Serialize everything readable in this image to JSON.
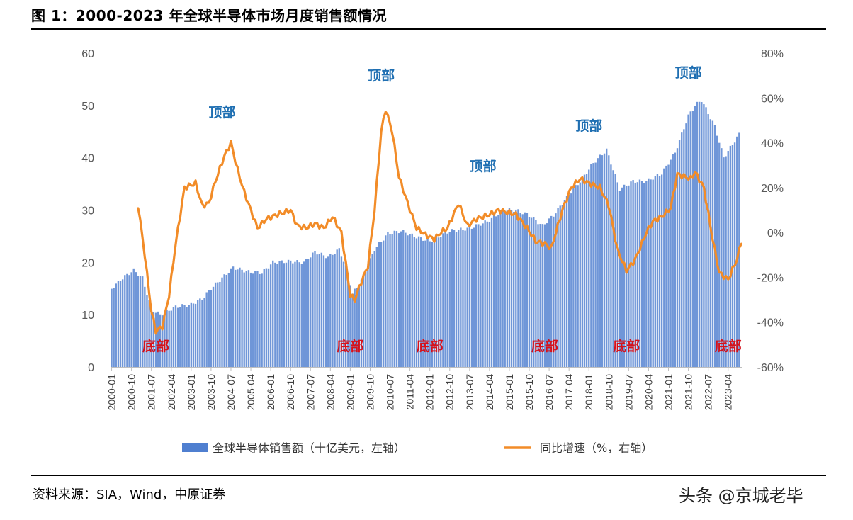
{
  "title": "图 1：2000-2023 年全球半导体市场月度销售额情况",
  "source": "资料来源：SIA，Wind，中原证券",
  "watermark": "头条 @京城老毕",
  "chart_data": {
    "type": "bar+line",
    "left_axis": {
      "min": 0,
      "max": 60,
      "ticks": [
        "0",
        "10",
        "20",
        "30",
        "40",
        "50",
        "60"
      ]
    },
    "right_axis": {
      "min": -60,
      "max": 80,
      "unit": "%",
      "ticks": [
        "-60%",
        "-40%",
        "-20%",
        "0%",
        "20%",
        "40%",
        "60%",
        "80%"
      ]
    },
    "x_tick_labels": [
      "2000-01",
      "2000-10",
      "2001-07",
      "2002-04",
      "2003-01",
      "2003-10",
      "2004-07",
      "2005-04",
      "2006-01",
      "2006-10",
      "2007-07",
      "2008-04",
      "2009-01",
      "2009-10",
      "2010-07",
      "2011-04",
      "2012-01",
      "2012-10",
      "2013-07",
      "2014-04",
      "2015-01",
      "2015-10",
      "2016-07",
      "2017-04",
      "2018-01",
      "2018-10",
      "2019-07",
      "2020-04",
      "2021-01",
      "2021-10",
      "2022-07",
      "2023-04"
    ],
    "series": [
      {
        "name": "全球半导体销售额（十亿美元，左轴）",
        "type": "bar",
        "axis": "left",
        "color": "#4f7fd0",
        "anchors": [
          [
            "2000-01",
            15
          ],
          [
            "2000-06",
            17
          ],
          [
            "2000-11",
            18.5
          ],
          [
            "2001-03",
            17
          ],
          [
            "2001-07",
            11
          ],
          [
            "2001-11",
            10
          ],
          [
            "2002-06",
            11.5
          ],
          [
            "2003-01",
            12
          ],
          [
            "2003-06",
            13
          ],
          [
            "2003-10",
            15
          ],
          [
            "2004-03",
            17
          ],
          [
            "2004-08",
            19
          ],
          [
            "2005-03",
            18.2
          ],
          [
            "2005-09",
            18
          ],
          [
            "2006-02",
            20
          ],
          [
            "2006-10",
            20.2
          ],
          [
            "2007-04",
            20
          ],
          [
            "2007-09",
            22
          ],
          [
            "2008-03",
            21
          ],
          [
            "2008-08",
            22.5
          ],
          [
            "2008-12",
            18
          ],
          [
            "2009-02",
            14
          ],
          [
            "2009-06",
            16.5
          ],
          [
            "2009-12",
            22.5
          ],
          [
            "2010-06",
            25.5
          ],
          [
            "2010-12",
            26
          ],
          [
            "2011-06",
            25
          ],
          [
            "2012-01",
            24
          ],
          [
            "2012-10",
            26
          ],
          [
            "2013-07",
            26.5
          ],
          [
            "2014-04",
            28
          ],
          [
            "2014-10",
            30
          ],
          [
            "2015-04",
            30
          ],
          [
            "2015-10",
            29
          ],
          [
            "2016-04",
            27
          ],
          [
            "2016-09",
            29
          ],
          [
            "2017-04",
            33
          ],
          [
            "2017-10",
            36
          ],
          [
            "2018-03",
            39
          ],
          [
            "2018-09",
            41.5
          ],
          [
            "2019-03",
            34
          ],
          [
            "2019-09",
            35.5
          ],
          [
            "2020-03",
            35.5
          ],
          [
            "2020-10",
            37
          ],
          [
            "2021-04",
            41
          ],
          [
            "2021-10",
            48
          ],
          [
            "2022-01",
            50
          ],
          [
            "2022-04",
            51
          ],
          [
            "2022-10",
            46
          ],
          [
            "2023-02",
            40
          ],
          [
            "2023-09",
            44.5
          ]
        ]
      },
      {
        "name": "同比增速（%，右轴）",
        "type": "line",
        "axis": "right",
        "color": "#f28c28",
        "anchors": [
          [
            "2001-01",
            12
          ],
          [
            "2001-04",
            -10
          ],
          [
            "2001-07",
            -35
          ],
          [
            "2001-09",
            -44
          ],
          [
            "2001-12",
            -42
          ],
          [
            "2002-03",
            -28
          ],
          [
            "2002-06",
            -5
          ],
          [
            "2002-10",
            20
          ],
          [
            "2003-03",
            22
          ],
          [
            "2003-06",
            12
          ],
          [
            "2003-09",
            13
          ],
          [
            "2003-12",
            23
          ],
          [
            "2004-04",
            34
          ],
          [
            "2004-07",
            40
          ],
          [
            "2004-10",
            28
          ],
          [
            "2005-01",
            18
          ],
          [
            "2005-04",
            10
          ],
          [
            "2005-07",
            2
          ],
          [
            "2005-11",
            6
          ],
          [
            "2006-04",
            8
          ],
          [
            "2006-10",
            10
          ],
          [
            "2007-01",
            3
          ],
          [
            "2007-05",
            2
          ],
          [
            "2007-09",
            4
          ],
          [
            "2008-01",
            2
          ],
          [
            "2008-05",
            7
          ],
          [
            "2008-09",
            0
          ],
          [
            "2009-01",
            -28
          ],
          [
            "2009-03",
            -30
          ],
          [
            "2009-06",
            -22
          ],
          [
            "2009-09",
            -15
          ],
          [
            "2009-12",
            10
          ],
          [
            "2010-03",
            45
          ],
          [
            "2010-05",
            55
          ],
          [
            "2010-08",
            45
          ],
          [
            "2010-11",
            25
          ],
          [
            "2011-03",
            13
          ],
          [
            "2011-07",
            2
          ],
          [
            "2011-11",
            -1
          ],
          [
            "2012-03",
            -3
          ],
          [
            "2012-06",
            0
          ],
          [
            "2012-09",
            2
          ],
          [
            "2013-02",
            13
          ],
          [
            "2013-06",
            3
          ],
          [
            "2013-10",
            6
          ],
          [
            "2014-04",
            8
          ],
          [
            "2014-08",
            10
          ],
          [
            "2014-12",
            9
          ],
          [
            "2015-04",
            8
          ],
          [
            "2015-09",
            2
          ],
          [
            "2016-01",
            -4
          ],
          [
            "2016-05",
            -5
          ],
          [
            "2016-08",
            -7
          ],
          [
            "2017-01",
            10
          ],
          [
            "2017-05",
            20
          ],
          [
            "2017-09",
            24
          ],
          [
            "2018-01",
            22
          ],
          [
            "2018-06",
            20
          ],
          [
            "2018-10",
            12
          ],
          [
            "2019-02",
            -8
          ],
          [
            "2019-06",
            -17
          ],
          [
            "2019-10",
            -12
          ],
          [
            "2020-03",
            0
          ],
          [
            "2020-06",
            5
          ],
          [
            "2020-10",
            7
          ],
          [
            "2021-02",
            11
          ],
          [
            "2021-05",
            26
          ],
          [
            "2021-08",
            25
          ],
          [
            "2021-11",
            24
          ],
          [
            "2022-01",
            27
          ],
          [
            "2022-05",
            20
          ],
          [
            "2022-09",
            -3
          ],
          [
            "2022-12",
            -18
          ],
          [
            "2023-04",
            -21
          ],
          [
            "2023-08",
            -12
          ],
          [
            "2023-10",
            -4
          ]
        ]
      }
    ],
    "annotations": [
      {
        "text": "顶部",
        "kind": "top",
        "near": "2004-03"
      },
      {
        "text": "顶部",
        "kind": "top",
        "near": "2010-03"
      },
      {
        "text": "顶部",
        "kind": "top",
        "near": "2014-01"
      },
      {
        "text": "顶部",
        "kind": "top",
        "near": "2018-01"
      },
      {
        "text": "顶部",
        "kind": "top",
        "near": "2021-10"
      },
      {
        "text": "底部",
        "kind": "bottom",
        "near": "2001-09"
      },
      {
        "text": "底部",
        "kind": "bottom",
        "near": "2009-01"
      },
      {
        "text": "底部",
        "kind": "bottom",
        "near": "2012-01"
      },
      {
        "text": "底部",
        "kind": "bottom",
        "near": "2016-05"
      },
      {
        "text": "底部",
        "kind": "bottom",
        "near": "2019-06"
      },
      {
        "text": "底部",
        "kind": "bottom",
        "near": "2023-04"
      }
    ],
    "legend": {
      "placement": "bottom"
    }
  }
}
